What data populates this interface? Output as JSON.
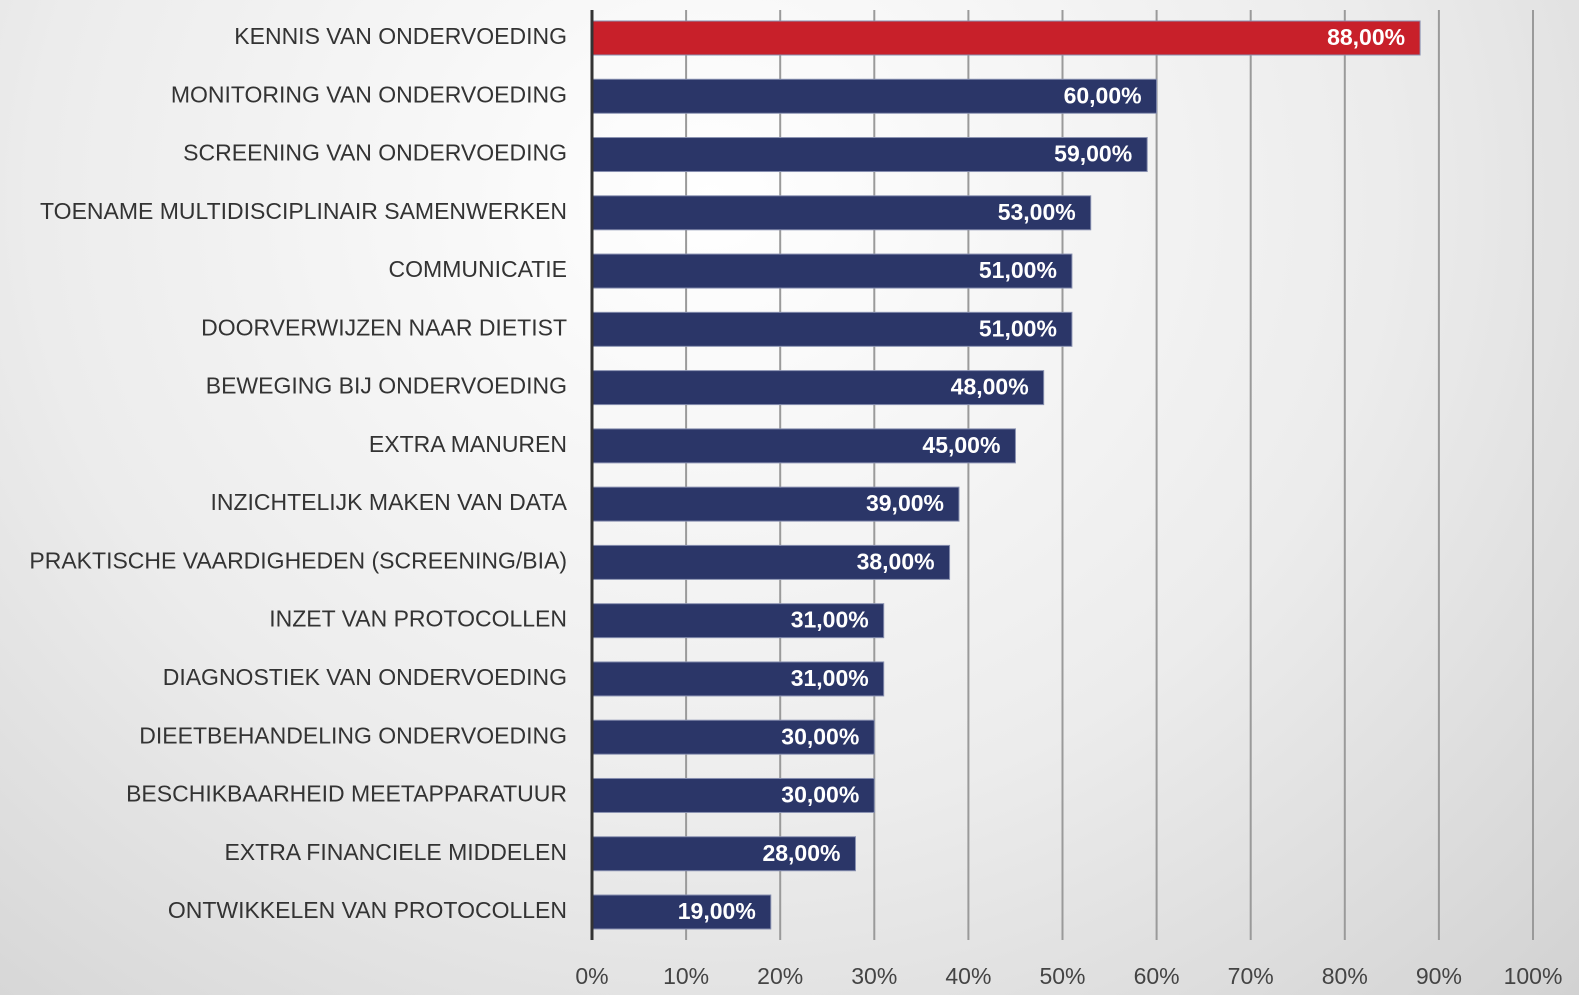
{
  "chart_data": {
    "type": "barh",
    "categories": [
      "KENNIS VAN ONDERVOEDING",
      "MONITORING VAN ONDERVOEDING",
      "SCREENING VAN ONDERVOEDING",
      "TOENAME MULTIDISCIPLINAIR SAMENWERKEN",
      "COMMUNICATIE",
      "DOORVERWIJZEN NAAR DIETIST",
      "BEWEGING BIJ ONDERVOEDING",
      "EXTRA MANUREN",
      "INZICHTELIJK MAKEN VAN DATA",
      "PRAKTISCHE VAARDIGHEDEN (SCREENING/BIA)",
      "INZET VAN PROTOCOLLEN",
      "DIAGNOSTIEK VAN ONDERVOEDING",
      "DIEETBEHANDELING ONDERVOEDING",
      "BESCHIKBAARHEID MEETAPPARATUUR",
      "EXTRA FINANCIELE MIDDELEN",
      "ONTWIKKELEN VAN PROTOCOLLEN"
    ],
    "values": [
      88,
      60,
      59,
      53,
      51,
      51,
      48,
      45,
      39,
      38,
      31,
      31,
      30,
      30,
      28,
      19
    ],
    "value_labels": [
      "88,00%",
      "60,00%",
      "59,00%",
      "53,00%",
      "51,00%",
      "51,00%",
      "48,00%",
      "45,00%",
      "39,00%",
      "38,00%",
      "31,00%",
      "31,00%",
      "30,00%",
      "30,00%",
      "28,00%",
      "19,00%"
    ],
    "colors": [
      "#c8202a",
      "#2b3668",
      "#2b3668",
      "#2b3668",
      "#2b3668",
      "#2b3668",
      "#2b3668",
      "#2b3668",
      "#2b3668",
      "#2b3668",
      "#2b3668",
      "#2b3668",
      "#2b3668",
      "#2b3668",
      "#2b3668",
      "#2b3668"
    ],
    "xlim": [
      0,
      100
    ],
    "xticks": [
      {
        "value": 0,
        "label": "0%"
      },
      {
        "value": 10,
        "label": "10%"
      },
      {
        "value": 20,
        "label": "20%"
      },
      {
        "value": 30,
        "label": "30%"
      },
      {
        "value": 40,
        "label": "40%"
      },
      {
        "value": 50,
        "label": "50%"
      },
      {
        "value": 60,
        "label": "60%"
      },
      {
        "value": 70,
        "label": "70%"
      },
      {
        "value": 80,
        "label": "80%"
      },
      {
        "value": 90,
        "label": "90%"
      },
      {
        "value": 100,
        "label": "100%"
      }
    ],
    "grid": true
  }
}
